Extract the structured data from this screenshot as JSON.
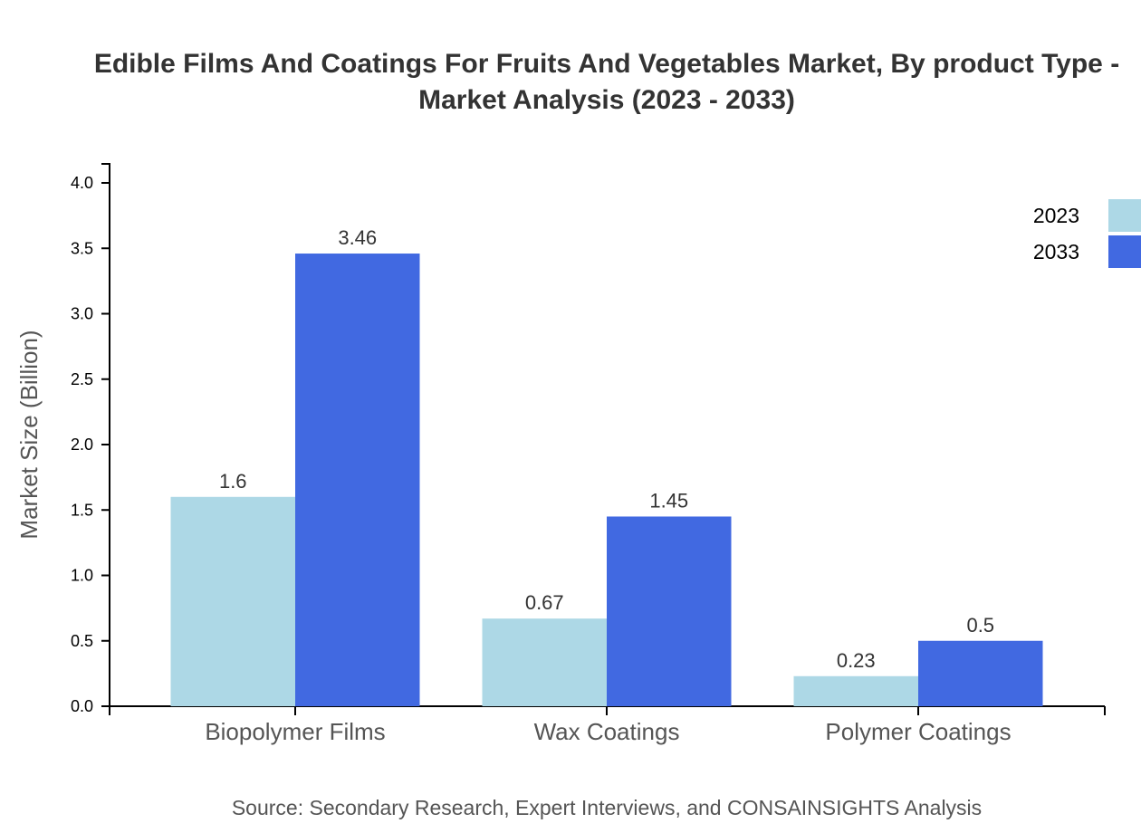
{
  "chart_data": {
    "type": "bar",
    "title": [
      "Edible Films And Coatings For Fruits And Vegetables Market, By product Type -",
      "Market Analysis (2023 - 2033)"
    ],
    "ylabel": "Market Size (Billion)",
    "xlabel": "",
    "ylim": [
      0,
      4.0
    ],
    "yticks": [
      "0.0",
      "0.5",
      "1.0",
      "1.5",
      "2.0",
      "2.5",
      "3.0",
      "3.5",
      "4.0"
    ],
    "categories": [
      "Biopolymer Films",
      "Wax Coatings",
      "Polymer Coatings"
    ],
    "series": [
      {
        "name": "2023",
        "color": "#add8e6",
        "values": [
          1.6,
          0.67,
          0.23
        ]
      },
      {
        "name": "2033",
        "color": "#4169e1",
        "values": [
          3.46,
          1.45,
          0.5
        ]
      }
    ],
    "legend_position": "top-right",
    "grid": false,
    "source": "Source: Secondary Research, Expert Interviews, and CONSAINSIGHTS Analysis"
  }
}
